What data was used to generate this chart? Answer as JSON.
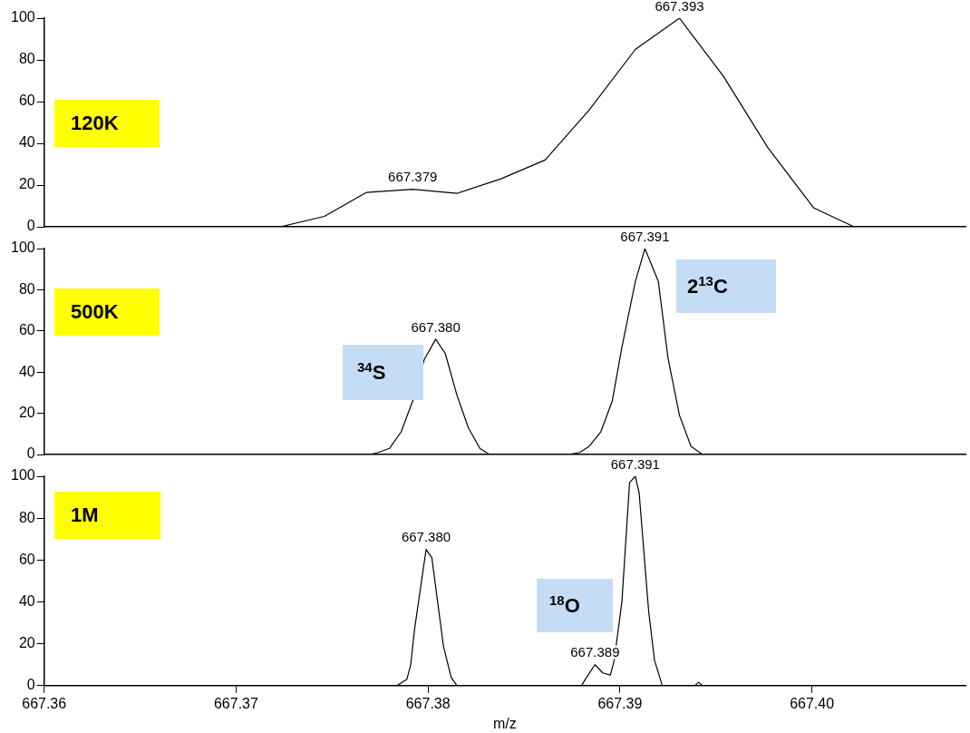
{
  "chart_data": [
    {
      "type": "line",
      "xlim": [
        667.36,
        667.408
      ],
      "ylim": [
        0,
        100
      ],
      "yticks": [
        0,
        20,
        40,
        60,
        80,
        100
      ],
      "tick_labels": "y",
      "series": [
        {
          "color": "#000000",
          "x": [
            667.36,
            667.3723,
            667.3746,
            667.3768,
            667.3792,
            667.3815,
            667.3838,
            667.3861,
            667.3884,
            667.3908,
            667.3931,
            667.3954,
            667.3977,
            667.4001,
            667.4022,
            667.408
          ],
          "values": [
            0,
            0,
            5,
            16.5,
            18,
            16,
            23,
            32,
            56,
            85,
            100,
            72,
            38,
            9,
            0,
            0
          ]
        }
      ],
      "annotations": [
        "120K",
        {
          "text": "667.379",
          "x": 667.3792,
          "y": 18
        },
        {
          "text": "667.393",
          "x": 667.3931,
          "y": 100
        }
      ]
    },
    {
      "type": "line",
      "xlim": [
        667.36,
        667.408
      ],
      "ylim": [
        0,
        100
      ],
      "yticks": [
        0,
        20,
        40,
        60,
        80,
        100
      ],
      "tick_labels": "y",
      "series": [
        {
          "color": "#000000",
          "x": [
            667.36,
            667.377,
            667.3774,
            667.378,
            667.3786,
            667.3792,
            667.3798,
            667.3804,
            667.3809,
            667.3815,
            667.3821,
            667.3827,
            667.3832,
            667.3873,
            667.3879,
            667.3884,
            667.389,
            667.3896,
            667.3901,
            667.3908,
            667.3913,
            667.392,
            667.3925,
            667.3931,
            667.3937,
            667.3943,
            667.408
          ],
          "values": [
            0,
            0,
            1,
            3,
            11,
            26,
            46,
            56,
            49,
            29,
            13,
            3,
            0,
            0,
            1,
            4,
            11,
            26,
            52,
            84,
            100,
            84,
            47,
            19,
            4,
            0,
            0
          ]
        }
      ],
      "annotations": [
        "500K",
        "$^{34}$S",
        "2$^{13}$C",
        {
          "text": "667.380",
          "x": 667.3804,
          "y": 56
        },
        {
          "text": "667.391",
          "x": 667.3913,
          "y": 100
        }
      ]
    },
    {
      "type": "line",
      "xlim": [
        667.36,
        667.408
      ],
      "ylim": [
        0,
        100
      ],
      "yticks": [
        0,
        20,
        40,
        60,
        80,
        100
      ],
      "xlabel": "m/z",
      "xticks": [
        667.36,
        667.37,
        667.38,
        667.39,
        {
          "value": 667.4,
          "label": "667.40"
        }
      ],
      "series": [
        {
          "color": "#000000",
          "x": [
            667.36,
            667.3784,
            667.3789,
            667.3791,
            667.3793,
            667.3799,
            667.3802,
            667.3805,
            667.3808,
            667.3812,
            667.3815,
            667.388,
            667.3882,
            667.3887,
            667.3891,
            667.3895,
            667.3897,
            667.3901,
            667.3905,
            667.3908,
            667.391,
            667.3915,
            667.3918,
            667.3922,
            667.3939,
            667.3941,
            667.3943,
            667.408
          ],
          "values": [
            0,
            0,
            3,
            10,
            27,
            65,
            61,
            40,
            19,
            4,
            0,
            0,
            3,
            10,
            6,
            5,
            12,
            40,
            97,
            100,
            92,
            35,
            12,
            0,
            0,
            1.5,
            0,
            0
          ]
        }
      ],
      "annotations": [
        "1M",
        "$^{18}$O",
        {
          "text": "667.380",
          "x": 667.3799,
          "y": 65
        },
        {
          "text": "667.391",
          "x": 667.3908,
          "y": 100
        },
        {
          "text": "667.389",
          "x": 667.3887,
          "y": 10
        }
      ]
    }
  ]
}
